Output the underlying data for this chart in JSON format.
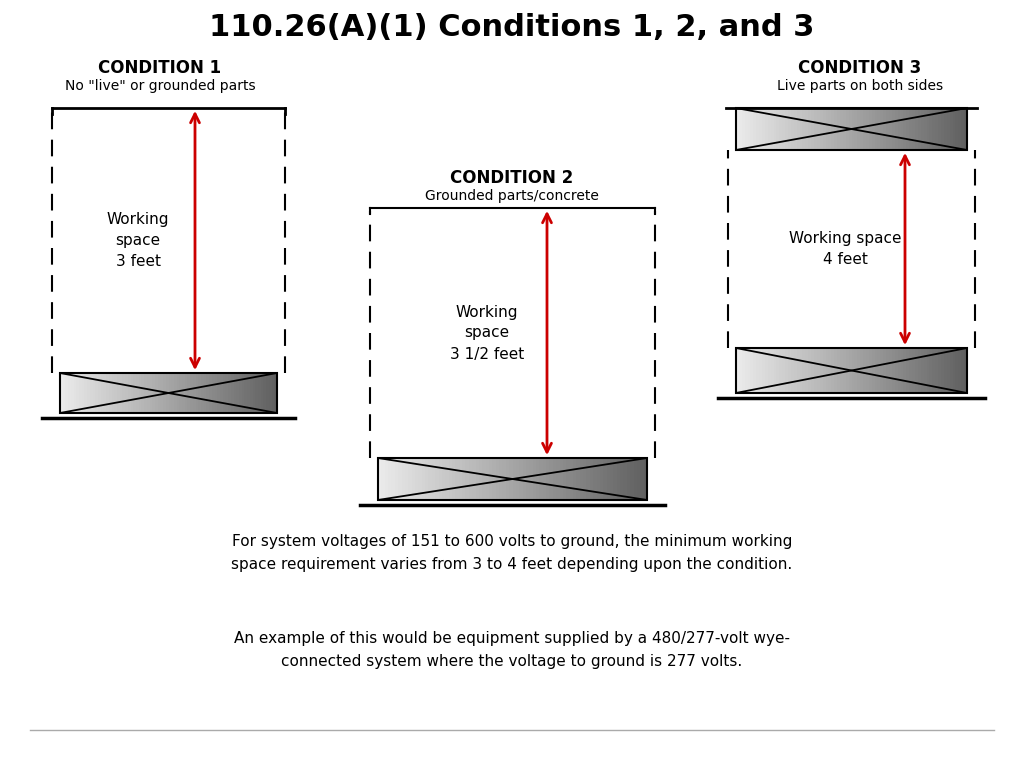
{
  "title": "110.26(A)(1) Conditions 1, 2, and 3",
  "title_fontsize": 22,
  "bg_color": "#ffffff",
  "cond1_title": "CONDITION 1",
  "cond1_subtitle": "No \"live\" or grounded parts",
  "cond1_label": "Working\nspace\n3 feet",
  "cond2_title": "CONDITION 2",
  "cond2_subtitle": "Grounded parts/concrete",
  "cond2_label": "Working\nspace\n3 1/2 feet",
  "cond3_title": "CONDITION 3",
  "cond3_subtitle": "Live parts on both sides",
  "cond3_label": "Working space\n4 feet",
  "footer1": "For system voltages of 151 to 600 volts to ground, the minimum working\nspace requirement varies from 3 to 4 feet depending upon the condition.",
  "footer2": "An example of this would be equipment supplied by a 480/277-volt wye-\nconnected system where the voltage to ground is 277 volts.",
  "arrow_color": "#cc0000",
  "text_color": "#000000"
}
